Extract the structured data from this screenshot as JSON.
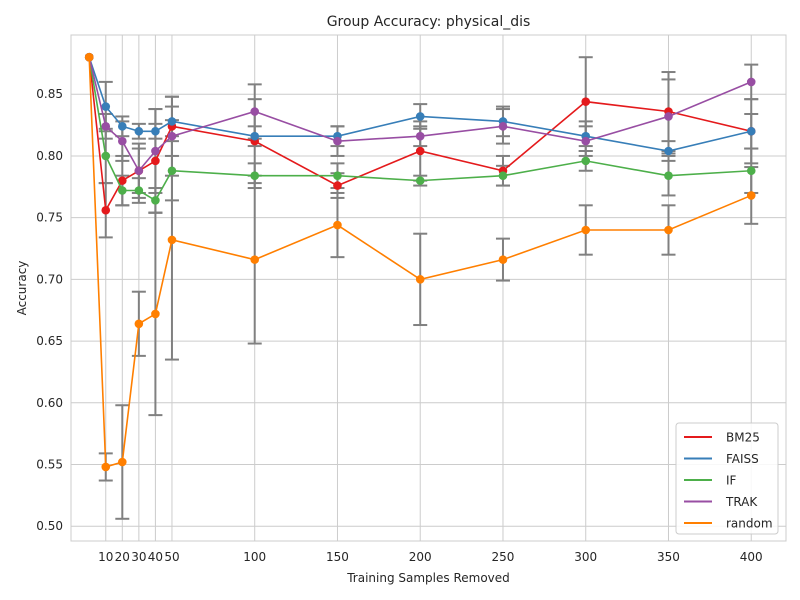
{
  "chart_data": {
    "type": "line",
    "title": "Group Accuracy: physical_dis",
    "xlabel": "Training Samples Removed",
    "ylabel": "Accuracy",
    "xlim": [
      -11,
      421
    ],
    "ylim": [
      0.488,
      0.898
    ],
    "x_ticks": [
      10,
      20,
      30,
      40,
      50,
      100,
      150,
      200,
      250,
      300,
      350,
      400
    ],
    "y_ticks": [
      0.5,
      0.55,
      0.6,
      0.65,
      0.7,
      0.75,
      0.8,
      0.85
    ],
    "grid": true,
    "legend_position": "lower-right",
    "series": [
      {
        "name": "BM25",
        "color": "#e41a1c",
        "x": [
          0,
          10,
          20,
          30,
          40,
          50,
          100,
          150,
          200,
          250,
          300,
          350,
          400
        ],
        "y": [
          0.88,
          0.756,
          0.78,
          0.788,
          0.796,
          0.824,
          0.812,
          0.776,
          0.804,
          0.788,
          0.844,
          0.836,
          0.82
        ],
        "err": [
          0,
          0.022,
          0.02,
          0.022,
          0.042,
          0.024,
          0.034,
          0.01,
          0.024,
          0.012,
          0.036,
          0.032,
          0.026
        ]
      },
      {
        "name": "FAISS",
        "color": "#377eb8",
        "x": [
          0,
          10,
          20,
          30,
          40,
          50,
          100,
          150,
          200,
          250,
          300,
          350,
          400
        ],
        "y": [
          0.88,
          0.84,
          0.824,
          0.82,
          0.82,
          0.828,
          0.816,
          0.816,
          0.832,
          0.828,
          0.816,
          0.804,
          0.82
        ],
        "err": [
          0,
          0.02,
          0.008,
          0.006,
          0.006,
          0.012,
          0.008,
          0.008,
          0.01,
          0.012,
          0.012,
          0.008,
          0.014
        ]
      },
      {
        "name": "IF",
        "color": "#4daf4a",
        "x": [
          0,
          10,
          20,
          30,
          40,
          50,
          100,
          150,
          200,
          250,
          300,
          350,
          400
        ],
        "y": [
          0.88,
          0.8,
          0.772,
          0.772,
          0.764,
          0.788,
          0.784,
          0.784,
          0.78,
          0.784,
          0.796,
          0.784,
          0.788
        ],
        "err": [
          0,
          0.022,
          0.012,
          0.01,
          0.01,
          0.024,
          0.01,
          0.01,
          0.004,
          0.008,
          0.008,
          0.016,
          0.018
        ]
      },
      {
        "name": "TRAK",
        "color": "#984ea3",
        "x": [
          0,
          10,
          20,
          30,
          40,
          50,
          100,
          150,
          200,
          250,
          300,
          350,
          400
        ],
        "y": [
          0.88,
          0.824,
          0.812,
          0.788,
          0.804,
          0.816,
          0.836,
          0.812,
          0.816,
          0.824,
          0.812,
          0.832,
          0.86
        ],
        "err": [
          0,
          0.01,
          0.016,
          0.018,
          0.034,
          0.032,
          0.022,
          0.012,
          0.008,
          0.014,
          0.012,
          0.03,
          0.014
        ]
      },
      {
        "name": "random",
        "color": "#ff7f00",
        "x": [
          0,
          10,
          20,
          30,
          40,
          50,
          100,
          150,
          200,
          250,
          300,
          350,
          400
        ],
        "y": [
          0.88,
          0.548,
          0.552,
          0.664,
          0.672,
          0.732,
          0.716,
          0.744,
          0.7,
          0.716,
          0.74,
          0.74,
          0.768
        ],
        "err": [
          0,
          0.011,
          0.046,
          0.026,
          0.082,
          0.097,
          0.068,
          0.026,
          0.037,
          0.017,
          0.02,
          0.02,
          0.023
        ]
      }
    ]
  }
}
